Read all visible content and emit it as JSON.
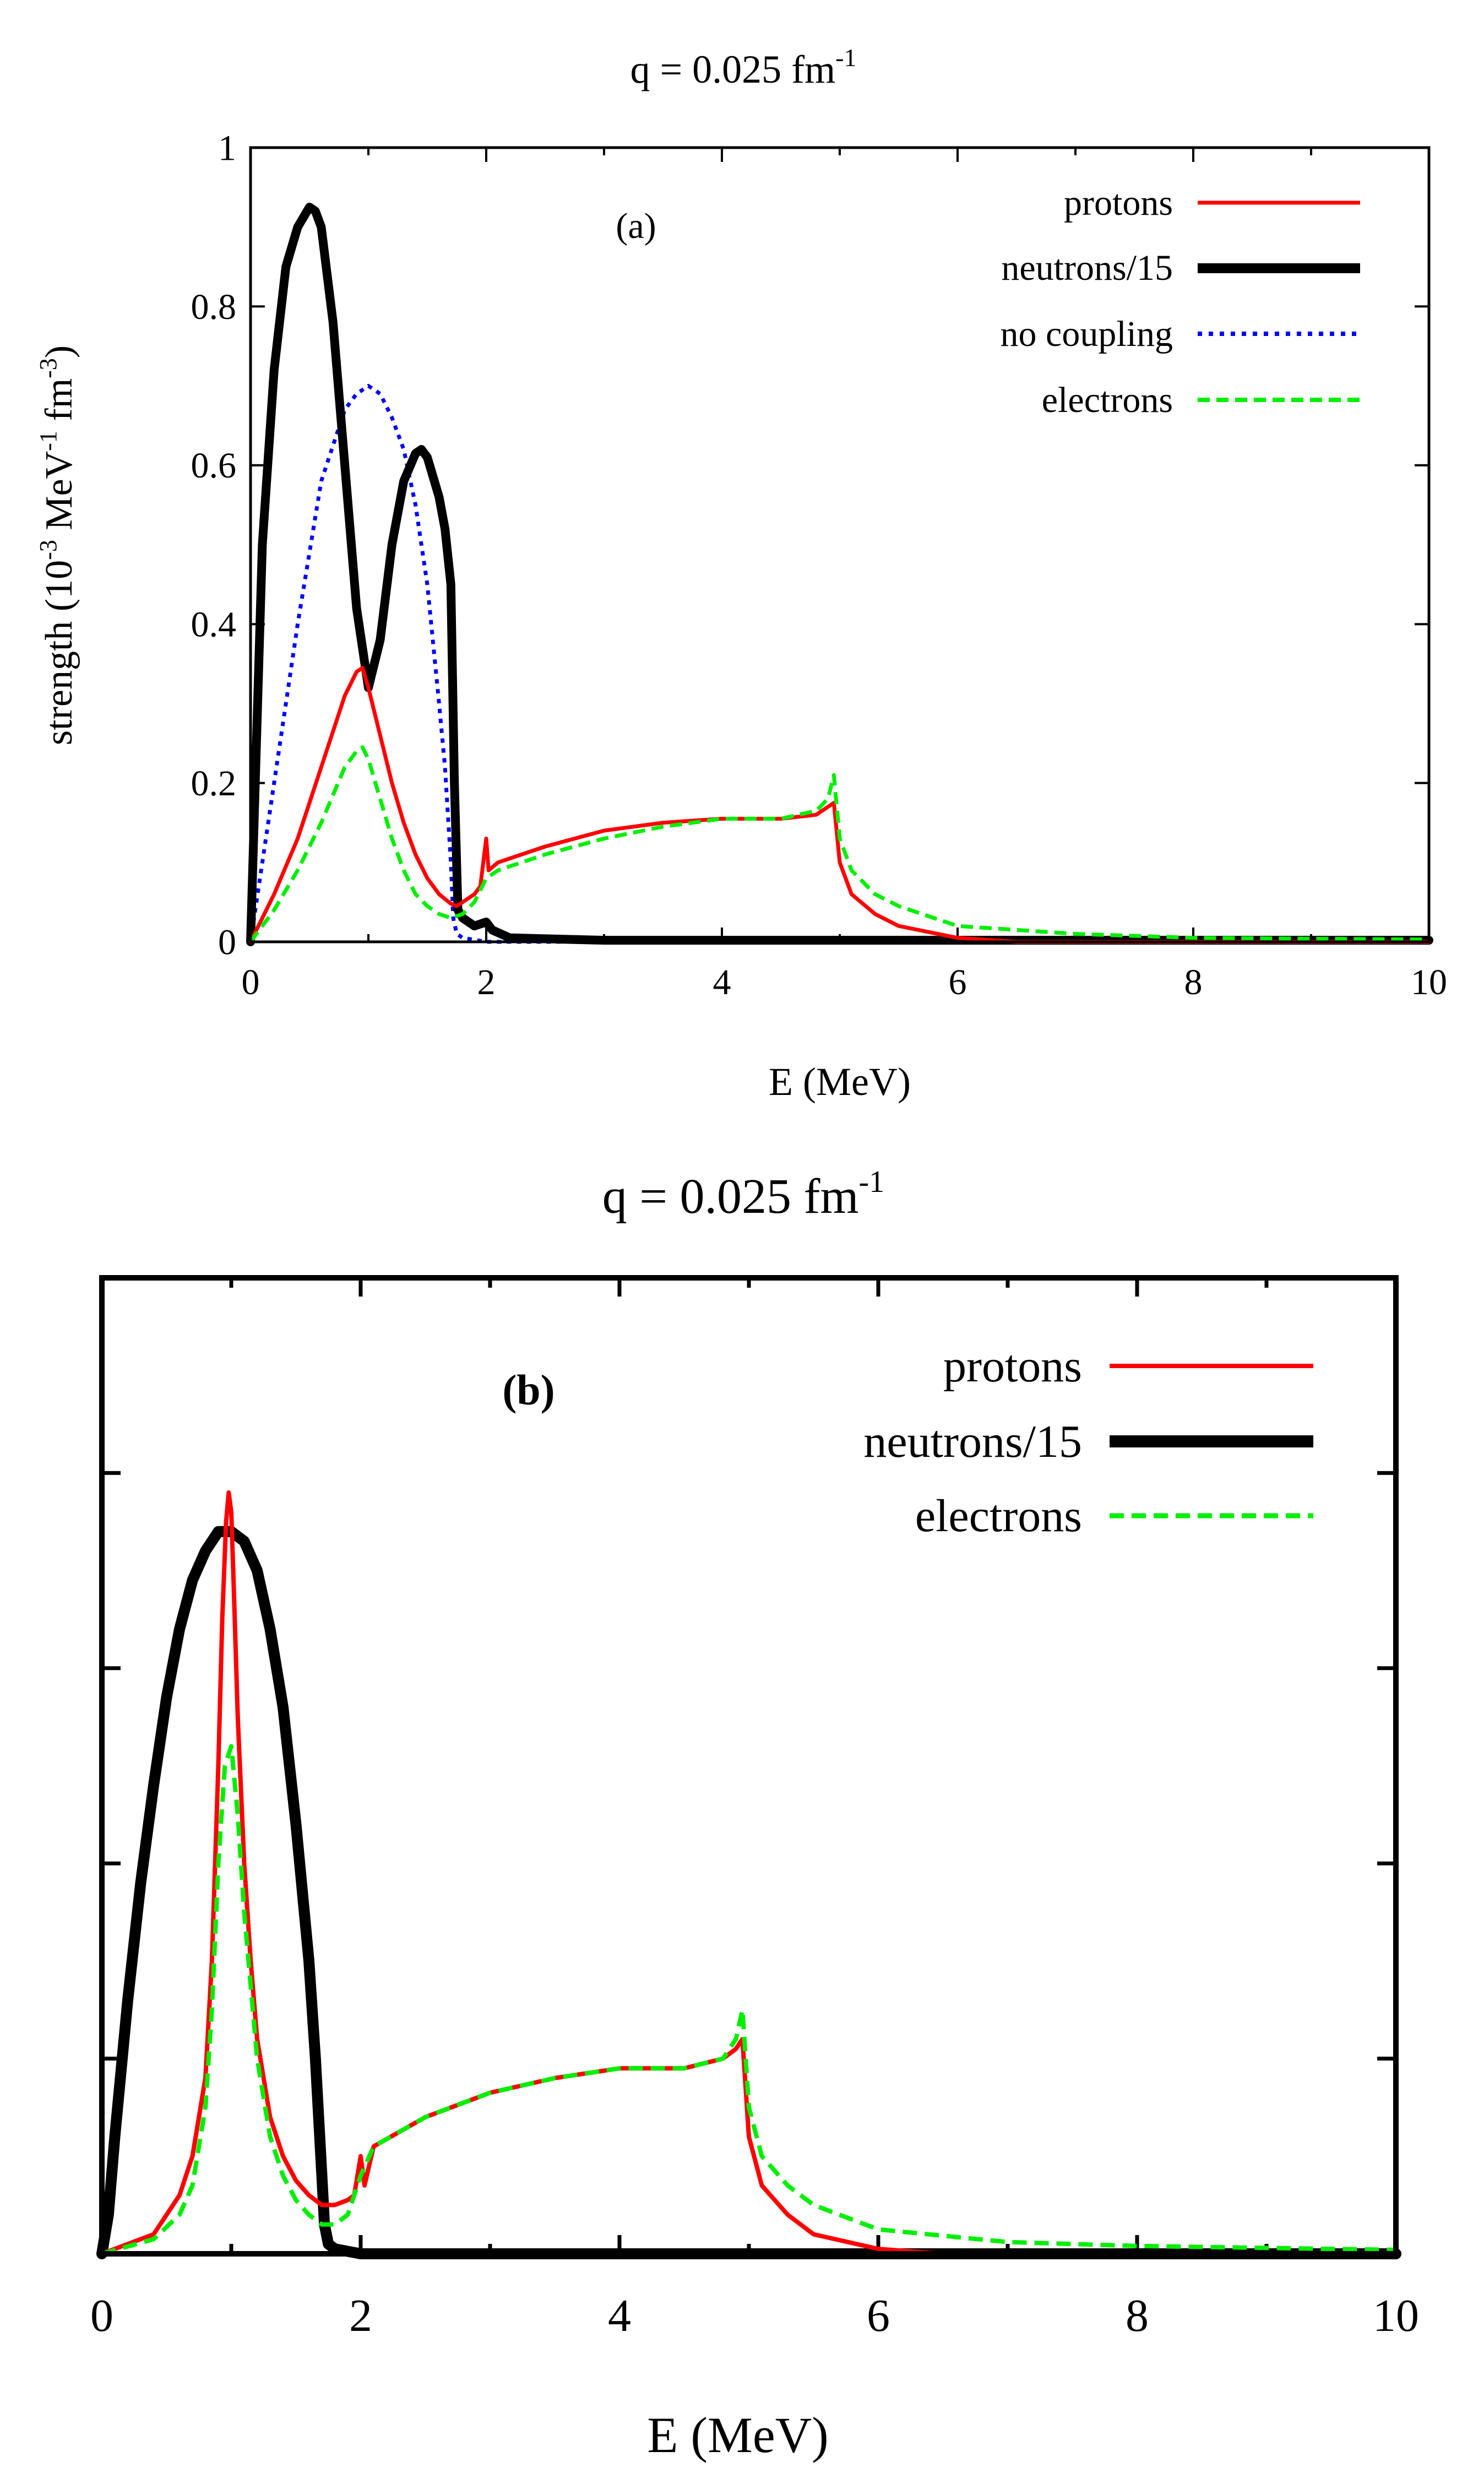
{
  "chart_data": [
    {
      "type": "line",
      "panel_label": "(a)",
      "title": "q = 0.025 fm",
      "title_sup": "-1",
      "xlabel": "E (MeV)",
      "ylabel": "strength (10",
      "ylabel_sup1": "-3",
      "ylabel_mid": " MeV",
      "ylabel_sup2": "-1",
      "ylabel_mid2": " fm",
      "ylabel_sup3": "-3",
      "ylabel_end": ")",
      "xlim": [
        0,
        10
      ],
      "ylim": [
        0,
        1
      ],
      "xticks": [
        "0",
        "2",
        "4",
        "6",
        "8",
        "10"
      ],
      "yticks": [
        "0",
        "0.2",
        "0.4",
        "0.6",
        "0.8",
        "1"
      ],
      "legend_position": "top-right",
      "series": [
        {
          "name": "protons",
          "color": "#ff0000",
          "style": "solid",
          "width": "thin",
          "x": [
            0,
            0.2,
            0.4,
            0.6,
            0.8,
            0.9,
            0.95,
            1.0,
            1.1,
            1.2,
            1.3,
            1.4,
            1.5,
            1.6,
            1.7,
            1.75,
            1.8,
            1.9,
            1.95,
            2.0,
            2.02,
            2.1,
            2.5,
            3.0,
            3.5,
            4.0,
            4.5,
            4.8,
            4.9,
            4.95,
            5.0,
            5.1,
            5.3,
            5.5,
            6.0,
            6.5,
            10
          ],
          "y": [
            0,
            0.06,
            0.13,
            0.22,
            0.31,
            0.34,
            0.345,
            0.32,
            0.26,
            0.2,
            0.15,
            0.11,
            0.08,
            0.06,
            0.048,
            0.045,
            0.05,
            0.06,
            0.07,
            0.13,
            0.09,
            0.1,
            0.12,
            0.14,
            0.15,
            0.155,
            0.155,
            0.16,
            0.17,
            0.175,
            0.1,
            0.06,
            0.035,
            0.02,
            0.005,
            0,
            0
          ]
        },
        {
          "name": "neutrons/15",
          "color": "#000000",
          "style": "solid",
          "width": "thick",
          "x": [
            0,
            0.1,
            0.2,
            0.3,
            0.4,
            0.5,
            0.55,
            0.6,
            0.7,
            0.8,
            0.9,
            1.0,
            1.1,
            1.2,
            1.3,
            1.4,
            1.45,
            1.5,
            1.6,
            1.65,
            1.7,
            1.73,
            1.76,
            1.8,
            1.9,
            2.0,
            2.05,
            2.2,
            3.0,
            10
          ],
          "y": [
            0,
            0.5,
            0.72,
            0.85,
            0.9,
            0.925,
            0.92,
            0.9,
            0.78,
            0.6,
            0.42,
            0.32,
            0.38,
            0.5,
            0.58,
            0.615,
            0.62,
            0.61,
            0.56,
            0.52,
            0.45,
            0.2,
            0.04,
            0.03,
            0.02,
            0.025,
            0.015,
            0.005,
            0.002,
            0.002
          ]
        },
        {
          "name": "no coupling",
          "color": "#0000ff",
          "style": "dotted",
          "width": "thin",
          "x": [
            0,
            0.2,
            0.4,
            0.6,
            0.8,
            0.9,
            1.0,
            1.1,
            1.2,
            1.3,
            1.4,
            1.5,
            1.6,
            1.65,
            1.7,
            1.72,
            1.75,
            1.8,
            2.0,
            2.5,
            10
          ],
          "y": [
            0,
            0.2,
            0.4,
            0.58,
            0.67,
            0.69,
            0.7,
            0.69,
            0.66,
            0.62,
            0.55,
            0.45,
            0.3,
            0.22,
            0.1,
            0.03,
            0.01,
            0.005,
            0,
            0,
            0
          ]
        },
        {
          "name": "electrons",
          "color": "#00ee00",
          "style": "dashed",
          "width": "thin",
          "x": [
            0,
            0.2,
            0.4,
            0.6,
            0.8,
            0.9,
            0.95,
            1.0,
            1.1,
            1.2,
            1.3,
            1.4,
            1.5,
            1.6,
            1.7,
            1.8,
            1.9,
            2.0,
            2.1,
            2.5,
            3.0,
            3.5,
            4.0,
            4.5,
            4.8,
            4.9,
            4.95,
            5.0,
            5.1,
            5.3,
            5.5,
            6.0,
            7.0,
            8.0,
            10
          ],
          "y": [
            0,
            0.04,
            0.09,
            0.15,
            0.22,
            0.24,
            0.245,
            0.23,
            0.18,
            0.13,
            0.09,
            0.06,
            0.045,
            0.035,
            0.03,
            0.035,
            0.05,
            0.08,
            0.09,
            0.11,
            0.13,
            0.145,
            0.155,
            0.155,
            0.165,
            0.18,
            0.21,
            0.13,
            0.09,
            0.06,
            0.045,
            0.02,
            0.01,
            0.005,
            0.003
          ]
        }
      ]
    },
    {
      "type": "line",
      "panel_label": "(b)",
      "title": "q = 0.025 fm",
      "title_sup": "-1",
      "xlabel": "E (MeV)",
      "xlim": [
        0,
        10
      ],
      "ylim": [
        0,
        1
      ],
      "xticks": [
        "0",
        "2",
        "4",
        "6",
        "8",
        "10"
      ],
      "ytick_count": 6,
      "legend_position": "top-right",
      "series": [
        {
          "name": "protons",
          "color": "#ff0000",
          "style": "solid",
          "width": "thin",
          "x": [
            0,
            0.4,
            0.6,
            0.7,
            0.8,
            0.85,
            0.9,
            0.93,
            0.96,
            0.98,
            1.0,
            1.02,
            1.05,
            1.1,
            1.15,
            1.2,
            1.3,
            1.4,
            1.5,
            1.6,
            1.7,
            1.8,
            1.9,
            1.95,
            2.0,
            2.03,
            2.1,
            2.5,
            3.0,
            3.5,
            4.0,
            4.5,
            4.8,
            4.9,
            4.95,
            5.0,
            5.1,
            5.3,
            5.5,
            6.0,
            6.5,
            10
          ],
          "y": [
            0,
            0.02,
            0.06,
            0.1,
            0.18,
            0.3,
            0.5,
            0.65,
            0.75,
            0.78,
            0.76,
            0.68,
            0.55,
            0.4,
            0.3,
            0.22,
            0.14,
            0.1,
            0.075,
            0.06,
            0.05,
            0.05,
            0.055,
            0.06,
            0.1,
            0.07,
            0.11,
            0.14,
            0.165,
            0.18,
            0.19,
            0.19,
            0.2,
            0.21,
            0.22,
            0.12,
            0.07,
            0.04,
            0.02,
            0.005,
            0,
            0
          ]
        },
        {
          "name": "neutrons/15",
          "color": "#000000",
          "style": "solid",
          "width": "thick",
          "x": [
            0,
            0.05,
            0.1,
            0.2,
            0.3,
            0.4,
            0.5,
            0.6,
            0.7,
            0.8,
            0.9,
            1.0,
            1.1,
            1.2,
            1.3,
            1.4,
            1.5,
            1.6,
            1.65,
            1.7,
            1.72,
            1.75,
            1.8,
            2.0,
            10
          ],
          "y": [
            0,
            0.04,
            0.12,
            0.26,
            0.38,
            0.48,
            0.57,
            0.64,
            0.69,
            0.72,
            0.74,
            0.74,
            0.73,
            0.7,
            0.64,
            0.56,
            0.44,
            0.3,
            0.2,
            0.08,
            0.03,
            0.01,
            0.005,
            0,
            0
          ]
        },
        {
          "name": "electrons",
          "color": "#00ee00",
          "style": "dashed",
          "width": "thin",
          "x": [
            0,
            0.4,
            0.6,
            0.7,
            0.8,
            0.85,
            0.9,
            0.95,
            1.0,
            1.05,
            1.1,
            1.2,
            1.3,
            1.4,
            1.5,
            1.6,
            1.7,
            1.8,
            1.9,
            2.0,
            2.1,
            2.5,
            3.0,
            3.5,
            4.0,
            4.5,
            4.8,
            4.9,
            4.95,
            5.0,
            5.1,
            5.3,
            5.5,
            6.0,
            7.0,
            8.0,
            10
          ],
          "y": [
            0,
            0.015,
            0.04,
            0.07,
            0.15,
            0.25,
            0.4,
            0.5,
            0.52,
            0.45,
            0.35,
            0.2,
            0.12,
            0.08,
            0.055,
            0.04,
            0.03,
            0.03,
            0.04,
            0.08,
            0.11,
            0.14,
            0.165,
            0.18,
            0.19,
            0.19,
            0.2,
            0.22,
            0.25,
            0.15,
            0.1,
            0.07,
            0.05,
            0.025,
            0.012,
            0.008,
            0.004
          ]
        }
      ]
    }
  ]
}
